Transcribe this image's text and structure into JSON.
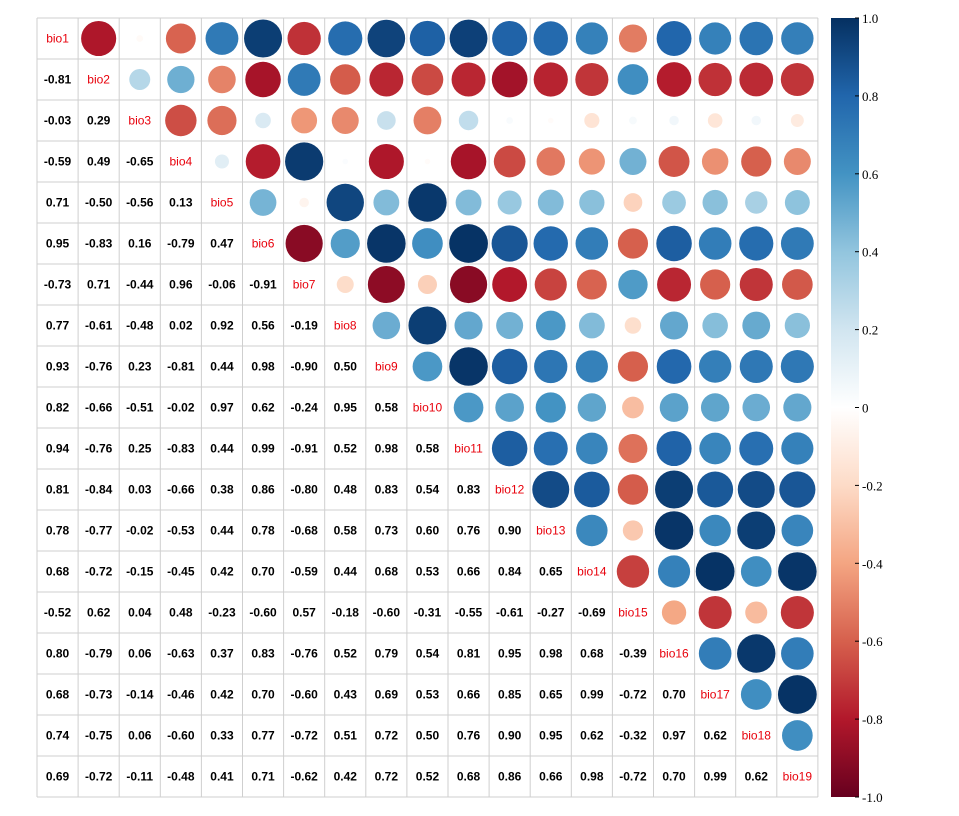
{
  "chart_data": {
    "type": "heatmap",
    "variables": [
      "bio1",
      "bio2",
      "bio3",
      "bio4",
      "bio5",
      "bio6",
      "bio7",
      "bio8",
      "bio9",
      "bio10",
      "bio11",
      "bio12",
      "bio13",
      "bio14",
      "bio15",
      "bio16",
      "bio17",
      "bio18",
      "bio19"
    ],
    "lower_labels": [
      [
        "-0.81"
      ],
      [
        "-0.03",
        "0.29"
      ],
      [
        "-0.59",
        "0.49",
        "-0.65"
      ],
      [
        "0.71",
        "-0.50",
        "-0.56",
        "0.13"
      ],
      [
        "0.95",
        "-0.83",
        "0.16",
        "-0.79",
        "0.47"
      ],
      [
        "-0.73",
        "0.71",
        "-0.44",
        "0.96",
        "-0.06",
        "-0.91"
      ],
      [
        "0.77",
        "-0.61",
        "-0.48",
        "0.02",
        "0.92",
        "0.56",
        "-0.19"
      ],
      [
        "0.93",
        "-0.76",
        "0.23",
        "-0.81",
        "0.44",
        "0.98",
        "-0.90",
        "0.50"
      ],
      [
        "0.82",
        "-0.66",
        "-0.51",
        "-0.02",
        "0.97",
        "0.62",
        "-0.24",
        "0.95",
        "0.58"
      ],
      [
        "0.94",
        "-0.76",
        "0.25",
        "-0.83",
        "0.44",
        "0.99",
        "-0.91",
        "0.52",
        "0.98",
        "0.58"
      ],
      [
        "0.81",
        "-0.84",
        "0.03",
        "-0.66",
        "0.38",
        "0.86",
        "-0.80",
        "0.48",
        "0.83",
        "0.54",
        "0.83"
      ],
      [
        "0.78",
        "-0.77",
        "-0.02",
        "-0.53",
        "0.44",
        "0.78",
        "-0.68",
        "0.58",
        "0.73",
        "0.60",
        "0.76",
        "0.90"
      ],
      [
        "0.68",
        "-0.72",
        "-0.15",
        "-0.45",
        "0.42",
        "0.70",
        "-0.59",
        "0.44",
        "0.68",
        "0.53",
        "0.66",
        "0.84",
        "0.65"
      ],
      [
        "-0.52",
        "0.62",
        "0.04",
        "0.48",
        "-0.23",
        "-0.60",
        "0.57",
        "-0.18",
        "-0.60",
        "-0.31",
        "-0.55",
        "-0.61",
        "-0.27",
        "-0.69"
      ],
      [
        "0.80",
        "-0.79",
        "0.06",
        "-0.63",
        "0.37",
        "0.83",
        "-0.76",
        "0.52",
        "0.79",
        "0.54",
        "0.81",
        "0.95",
        "0.98",
        "0.68",
        "-0.39"
      ],
      [
        "0.68",
        "-0.73",
        "-0.14",
        "-0.46",
        "0.42",
        "0.70",
        "-0.60",
        "0.43",
        "0.69",
        "0.53",
        "0.66",
        "0.85",
        "0.65",
        "0.99",
        "-0.72",
        "0.70"
      ],
      [
        "0.74",
        "-0.75",
        "0.06",
        "-0.60",
        "0.33",
        "0.77",
        "-0.72",
        "0.51",
        "0.72",
        "0.50",
        "0.76",
        "0.90",
        "0.95",
        "0.62",
        "-0.32",
        "0.97",
        "0.62"
      ],
      [
        "0.69",
        "-0.72",
        "-0.11",
        "-0.48",
        "0.41",
        "0.71",
        "-0.62",
        "0.42",
        "0.72",
        "0.52",
        "0.68",
        "0.86",
        "0.66",
        "0.98",
        "-0.72",
        "0.70",
        "0.99",
        "0.62"
      ]
    ],
    "upper_values": [
      [
        -0.81,
        -0.03,
        -0.59,
        0.71,
        0.95,
        -0.73,
        0.77,
        0.93,
        0.82,
        0.94,
        0.81,
        0.78,
        0.68,
        -0.52,
        0.8,
        0.68,
        0.74,
        0.69
      ],
      [
        0.29,
        0.49,
        -0.5,
        -0.83,
        0.71,
        -0.61,
        -0.76,
        -0.66,
        -0.76,
        -0.84,
        -0.77,
        -0.72,
        0.62,
        -0.79,
        -0.73,
        -0.75,
        -0.72
      ],
      [
        -0.65,
        -0.56,
        0.16,
        -0.44,
        -0.48,
        0.23,
        -0.51,
        0.25,
        0.03,
        -0.02,
        -0.15,
        0.04,
        0.06,
        -0.14,
        0.06,
        -0.11
      ],
      [
        0.13,
        -0.79,
        0.96,
        0.02,
        -0.81,
        -0.02,
        -0.83,
        -0.66,
        -0.53,
        -0.45,
        0.48,
        -0.63,
        -0.46,
        -0.6,
        -0.48
      ],
      [
        0.47,
        -0.06,
        0.92,
        0.44,
        0.97,
        0.44,
        0.38,
        0.44,
        0.42,
        -0.23,
        0.37,
        0.42,
        0.33,
        0.41
      ],
      [
        -0.91,
        0.56,
        0.98,
        0.62,
        0.99,
        0.86,
        0.78,
        0.7,
        -0.6,
        0.83,
        0.7,
        0.77,
        0.71
      ],
      [
        -0.19,
        -0.9,
        -0.24,
        -0.91,
        -0.8,
        -0.68,
        -0.59,
        0.57,
        -0.76,
        -0.6,
        -0.72,
        -0.62
      ],
      [
        0.5,
        0.95,
        0.52,
        0.48,
        0.58,
        0.44,
        -0.18,
        0.52,
        0.43,
        0.51,
        0.42
      ],
      [
        0.58,
        0.98,
        0.83,
        0.73,
        0.68,
        -0.6,
        0.79,
        0.69,
        0.72,
        0.72
      ],
      [
        0.58,
        0.54,
        0.6,
        0.53,
        -0.31,
        0.54,
        0.53,
        0.5,
        0.52
      ],
      [
        0.83,
        0.76,
        0.66,
        -0.55,
        0.81,
        0.66,
        0.76,
        0.68
      ],
      [
        0.9,
        0.84,
        -0.61,
        0.95,
        0.85,
        0.9,
        0.86
      ],
      [
        0.65,
        -0.27,
        0.98,
        0.65,
        0.95,
        0.66
      ],
      [
        -0.69,
        0.68,
        0.99,
        0.62,
        0.98
      ],
      [
        -0.39,
        -0.72,
        -0.32,
        -0.72
      ],
      [
        0.7,
        0.97,
        0.7
      ],
      [
        0.62,
        0.99
      ],
      [
        0.62
      ]
    ],
    "colorbar": {
      "range": [
        -1.0,
        1.0
      ],
      "tick_labels": [
        "1.0",
        "0.8",
        "0.6",
        "0.4",
        "0.2",
        "0",
        "-0.2",
        "-0.4",
        "-0.6",
        "-0.8",
        "-1.0"
      ],
      "tick_values": [
        1.0,
        0.8,
        0.6,
        0.4,
        0.2,
        0,
        -0.2,
        -0.4,
        -0.6,
        -0.8,
        -1.0
      ]
    },
    "palette": [
      "#67001F",
      "#B2182B",
      "#D6604D",
      "#F4A582",
      "#FDDBC7",
      "#FFFFFF",
      "#D1E5F0",
      "#92C5DE",
      "#4393C3",
      "#2166AC",
      "#053061"
    ],
    "diagonal_label_color": "#E8000B",
    "grid": true
  }
}
